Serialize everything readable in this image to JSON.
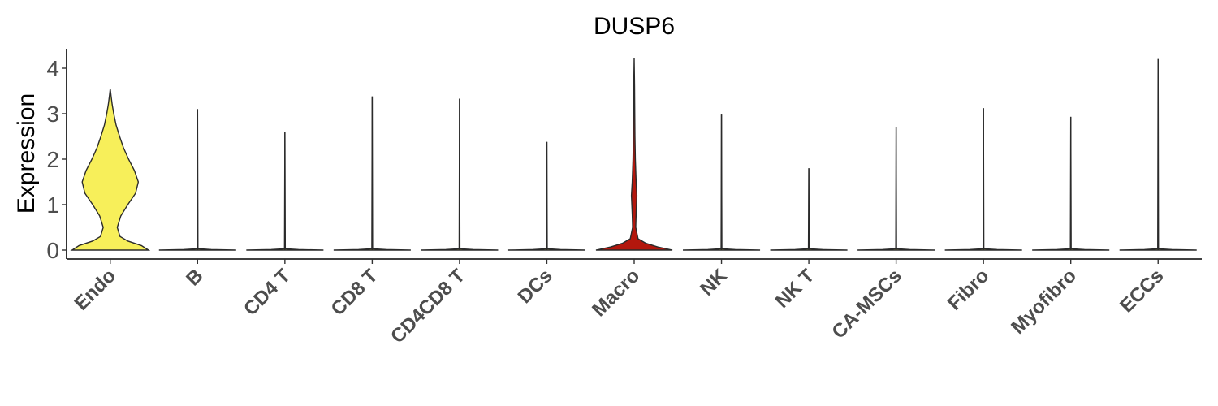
{
  "chart_data": {
    "type": "violin",
    "title": "DUSP6",
    "xlabel": "",
    "ylabel": "Expression",
    "ylim": [
      -0.2,
      4.4
    ],
    "yticks": [
      0,
      1,
      2,
      3,
      4
    ],
    "grid": false,
    "legend": "none",
    "categories": [
      "Endo",
      "B",
      "CD4 T",
      "CD8 T",
      "CD4CD8 T",
      "DCs",
      "Macro",
      "NK",
      "NK T",
      "CA-MSCs",
      "Fibro",
      "Myofibro",
      "ECCs"
    ],
    "max_values": [
      3.55,
      3.1,
      2.6,
      3.38,
      3.33,
      2.38,
      4.23,
      2.98,
      1.8,
      2.7,
      3.12,
      2.93,
      4.2
    ],
    "colors": {
      "Endo": "#f7ef5a",
      "Macro": "#b3170d",
      "default": "#f7ef5a"
    },
    "density_profiles": {
      "Endo": [
        [
          0,
          0.98
        ],
        [
          0.1,
          0.8
        ],
        [
          0.2,
          0.45
        ],
        [
          0.3,
          0.25
        ],
        [
          0.5,
          0.18
        ],
        [
          0.75,
          0.27
        ],
        [
          1.0,
          0.45
        ],
        [
          1.25,
          0.65
        ],
        [
          1.5,
          0.72
        ],
        [
          1.75,
          0.62
        ],
        [
          2.0,
          0.47
        ],
        [
          2.25,
          0.34
        ],
        [
          2.5,
          0.24
        ],
        [
          2.75,
          0.15
        ],
        [
          3.0,
          0.09
        ],
        [
          3.2,
          0.05
        ],
        [
          3.4,
          0.02
        ],
        [
          3.55,
          0
        ]
      ],
      "Macro": [
        [
          0,
          0.98
        ],
        [
          0.07,
          0.6
        ],
        [
          0.15,
          0.3
        ],
        [
          0.25,
          0.1
        ],
        [
          0.5,
          0.04
        ],
        [
          0.8,
          0.05
        ],
        [
          1.2,
          0.07
        ],
        [
          1.5,
          0.05
        ],
        [
          2.0,
          0.03
        ],
        [
          2.5,
          0.02
        ],
        [
          3.0,
          0.015
        ],
        [
          3.6,
          0.01
        ],
        [
          4.23,
          0
        ]
      ]
    }
  }
}
